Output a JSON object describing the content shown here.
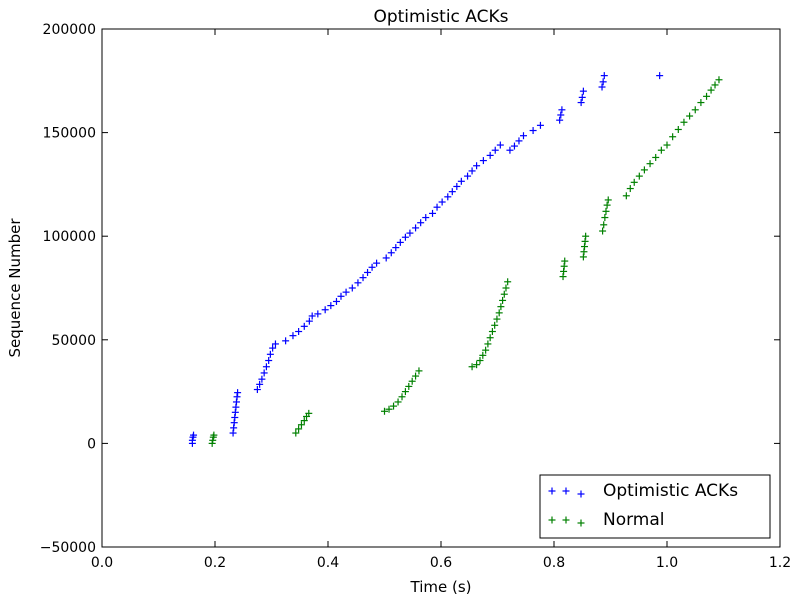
{
  "chart_data": {
    "type": "scatter",
    "title": "Optimistic ACKs",
    "xlabel": "Time (s)",
    "ylabel": "Sequence Number",
    "xlim": [
      0.0,
      1.2
    ],
    "ylim": [
      -50000,
      200000
    ],
    "x_ticks": [
      "0.0",
      "0.2",
      "0.4",
      "0.6",
      "0.8",
      "1.0",
      "1.2"
    ],
    "y_ticks": [
      "−50000",
      "0",
      "50000",
      "100000",
      "150000",
      "200000"
    ],
    "grid": false,
    "legend_position": "lower-right",
    "marker": "+",
    "series": [
      {
        "name": "Optimistic ACKs",
        "color": "#0000ff",
        "points": [
          [
            0.16,
            0
          ],
          [
            0.16,
            1500
          ],
          [
            0.161,
            3000
          ],
          [
            0.162,
            4000
          ],
          [
            0.232,
            5000
          ],
          [
            0.233,
            7500
          ],
          [
            0.234,
            10000
          ],
          [
            0.235,
            12500
          ],
          [
            0.236,
            15000
          ],
          [
            0.237,
            17500
          ],
          [
            0.238,
            20000
          ],
          [
            0.239,
            22500
          ],
          [
            0.24,
            24500
          ],
          [
            0.275,
            26000
          ],
          [
            0.279,
            28500
          ],
          [
            0.283,
            31000
          ],
          [
            0.287,
            34000
          ],
          [
            0.291,
            37000
          ],
          [
            0.295,
            40000
          ],
          [
            0.298,
            43000
          ],
          [
            0.302,
            46000
          ],
          [
            0.307,
            48000
          ],
          [
            0.325,
            49500
          ],
          [
            0.338,
            52000
          ],
          [
            0.348,
            54000
          ],
          [
            0.358,
            56500
          ],
          [
            0.367,
            59000
          ],
          [
            0.372,
            61500
          ],
          [
            0.382,
            62500
          ],
          [
            0.395,
            64500
          ],
          [
            0.405,
            66500
          ],
          [
            0.415,
            68500
          ],
          [
            0.423,
            71000
          ],
          [
            0.432,
            73000
          ],
          [
            0.443,
            75000
          ],
          [
            0.453,
            77500
          ],
          [
            0.462,
            80000
          ],
          [
            0.47,
            82500
          ],
          [
            0.478,
            85000
          ],
          [
            0.486,
            87000
          ],
          [
            0.503,
            89500
          ],
          [
            0.512,
            92000
          ],
          [
            0.52,
            94500
          ],
          [
            0.528,
            97000
          ],
          [
            0.537,
            99500
          ],
          [
            0.545,
            101500
          ],
          [
            0.555,
            104000
          ],
          [
            0.564,
            106500
          ],
          [
            0.573,
            109000
          ],
          [
            0.585,
            111000
          ],
          [
            0.593,
            114000
          ],
          [
            0.602,
            116500
          ],
          [
            0.612,
            119000
          ],
          [
            0.62,
            121500
          ],
          [
            0.628,
            124000
          ],
          [
            0.636,
            126500
          ],
          [
            0.647,
            129000
          ],
          [
            0.655,
            131500
          ],
          [
            0.663,
            134000
          ],
          [
            0.675,
            136500
          ],
          [
            0.687,
            139000
          ],
          [
            0.696,
            141500
          ],
          [
            0.705,
            144000
          ],
          [
            0.722,
            141500
          ],
          [
            0.73,
            143500
          ],
          [
            0.738,
            146000
          ],
          [
            0.746,
            148500
          ],
          [
            0.763,
            151000
          ],
          [
            0.776,
            153500
          ],
          [
            0.81,
            156000
          ],
          [
            0.812,
            158500
          ],
          [
            0.814,
            161000
          ],
          [
            0.848,
            164500
          ],
          [
            0.85,
            167000
          ],
          [
            0.852,
            170000
          ],
          [
            0.885,
            172000
          ],
          [
            0.887,
            174500
          ],
          [
            0.889,
            177500
          ],
          [
            0.987,
            177500
          ]
        ]
      },
      {
        "name": "Normal",
        "color": "#008000",
        "points": [
          [
            0.195,
            0
          ],
          [
            0.196,
            1500
          ],
          [
            0.197,
            3000
          ],
          [
            0.198,
            4000
          ],
          [
            0.343,
            5000
          ],
          [
            0.348,
            7000
          ],
          [
            0.353,
            9000
          ],
          [
            0.358,
            11000
          ],
          [
            0.362,
            13000
          ],
          [
            0.366,
            14500
          ],
          [
            0.5,
            15500
          ],
          [
            0.508,
            16500
          ],
          [
            0.516,
            18000
          ],
          [
            0.524,
            20000
          ],
          [
            0.531,
            22500
          ],
          [
            0.537,
            25000
          ],
          [
            0.543,
            27500
          ],
          [
            0.549,
            30000
          ],
          [
            0.555,
            32500
          ],
          [
            0.561,
            35000
          ],
          [
            0.655,
            37000
          ],
          [
            0.663,
            38000
          ],
          [
            0.669,
            40000
          ],
          [
            0.674,
            42500
          ],
          [
            0.679,
            45000
          ],
          [
            0.683,
            48000
          ],
          [
            0.687,
            51000
          ],
          [
            0.691,
            54000
          ],
          [
            0.695,
            57000
          ],
          [
            0.699,
            60000
          ],
          [
            0.703,
            63000
          ],
          [
            0.706,
            66000
          ],
          [
            0.709,
            69000
          ],
          [
            0.712,
            72000
          ],
          [
            0.715,
            75000
          ],
          [
            0.718,
            78000
          ],
          [
            0.816,
            80500
          ],
          [
            0.817,
            83000
          ],
          [
            0.818,
            85500
          ],
          [
            0.819,
            88000
          ],
          [
            0.852,
            90000
          ],
          [
            0.853,
            92500
          ],
          [
            0.854,
            95000
          ],
          [
            0.855,
            97500
          ],
          [
            0.856,
            100000
          ],
          [
            0.886,
            102500
          ],
          [
            0.888,
            105500
          ],
          [
            0.89,
            109000
          ],
          [
            0.892,
            112000
          ],
          [
            0.894,
            115000
          ],
          [
            0.896,
            117500
          ],
          [
            0.928,
            119500
          ],
          [
            0.935,
            123000
          ],
          [
            0.942,
            126000
          ],
          [
            0.951,
            129000
          ],
          [
            0.96,
            132000
          ],
          [
            0.97,
            135000
          ],
          [
            0.98,
            138000
          ],
          [
            0.99,
            141500
          ],
          [
            1.0,
            144000
          ],
          [
            1.01,
            148000
          ],
          [
            1.02,
            151500
          ],
          [
            1.03,
            155000
          ],
          [
            1.04,
            158000
          ],
          [
            1.05,
            161000
          ],
          [
            1.06,
            164500
          ],
          [
            1.07,
            167500
          ],
          [
            1.078,
            170500
          ],
          [
            1.085,
            173000
          ],
          [
            1.092,
            175500
          ]
        ]
      }
    ]
  }
}
